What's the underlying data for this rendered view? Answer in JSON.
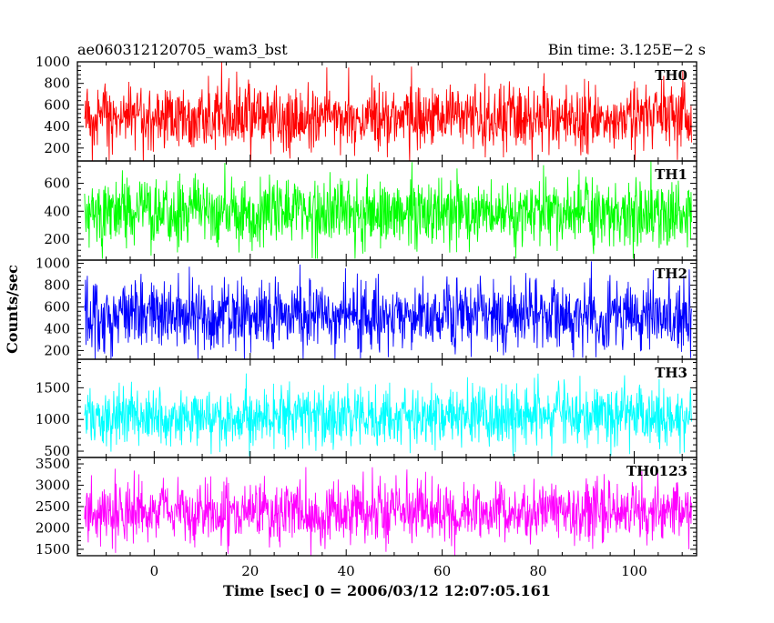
{
  "header": {
    "source_name": "ae060312120705_wam3_bst",
    "bin_time": "Bin time: 3.125E−2 s"
  },
  "chart_data": {
    "type": "line",
    "title": "ae060312120705_wam3_bst",
    "xlabel": "Time [sec] 0 = 2006/03/12 12:07:05.161",
    "ylabel": "Counts/sec",
    "xlim": [
      -16,
      113
    ],
    "x_range_data": [
      -14.5,
      112
    ],
    "x_ticks": [
      0,
      20,
      40,
      60,
      80,
      100
    ],
    "x_tick_labels": [
      "0",
      "20",
      "40",
      "60",
      "80",
      "100"
    ],
    "grid": false,
    "panels": [
      {
        "label": "TH0",
        "color": "#ff0000",
        "ylim": [
          80,
          1000
        ],
        "y_ticks": [
          200,
          400,
          600,
          800,
          1000
        ],
        "y_tick_labels": [
          "200",
          "400",
          "600",
          "800",
          "1000"
        ],
        "mean": 480,
        "sigma": 150,
        "min_value": 40,
        "max_value": 1000
      },
      {
        "label": "TH1",
        "color": "#00ff00",
        "ylim": [
          50,
          760
        ],
        "y_ticks": [
          200,
          400,
          600
        ],
        "y_tick_labels": [
          "200",
          "400",
          "600"
        ],
        "mean": 390,
        "sigma": 120,
        "min_value": 60,
        "max_value": 760
      },
      {
        "label": "TH2",
        "color": "#0000ff",
        "ylim": [
          120,
          1030
        ],
        "y_ticks": [
          200,
          400,
          600,
          800,
          1000
        ],
        "y_tick_labels": [
          "200",
          "400",
          "600",
          "800",
          "1000"
        ],
        "mean": 520,
        "sigma": 160,
        "min_value": 120,
        "max_value": 1030
      },
      {
        "label": "TH3",
        "color": "#00ffff",
        "ylim": [
          400,
          1950
        ],
        "y_ticks": [
          500,
          1000,
          1500
        ],
        "y_tick_labels": [
          "500",
          "1000",
          "1500"
        ],
        "mean": 1050,
        "sigma": 230,
        "min_value": 420,
        "max_value": 1950
      },
      {
        "label": "TH0123",
        "color": "#ff00ff",
        "ylim": [
          1350,
          3650
        ],
        "y_ticks": [
          1500,
          2000,
          2500,
          3000,
          3500
        ],
        "y_tick_labels": [
          "1500",
          "2000",
          "2500",
          "3000",
          "3500"
        ],
        "mean": 2380,
        "sigma": 360,
        "min_value": 1350,
        "max_value": 3650
      }
    ]
  }
}
